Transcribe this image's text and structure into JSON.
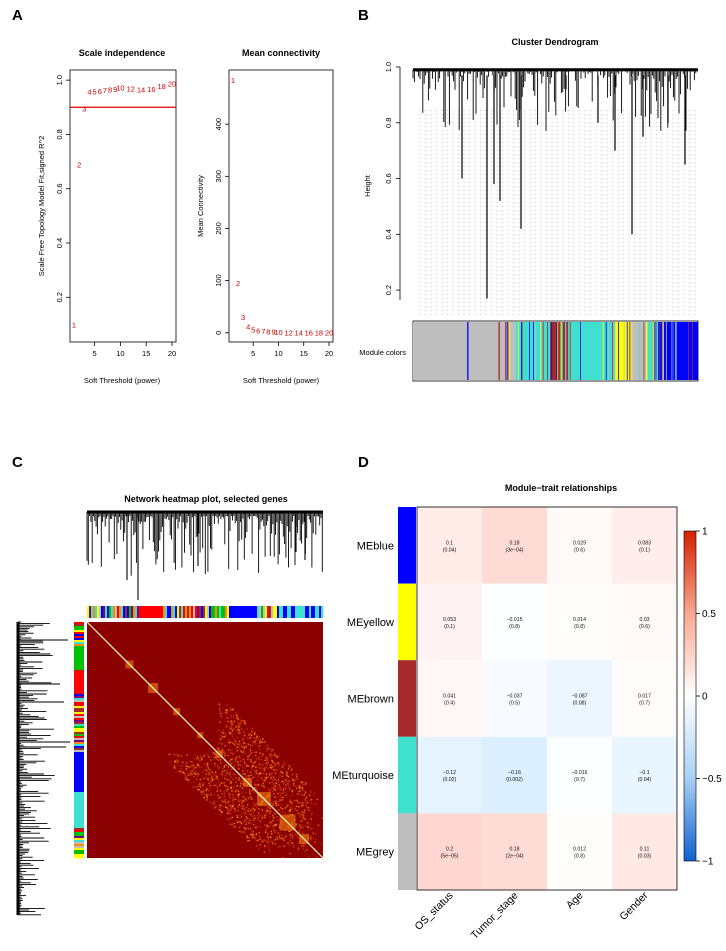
{
  "panels": {
    "A": "A",
    "B": "B",
    "C": "C",
    "D": "D"
  },
  "chart_data": [
    {
      "type": "scatter",
      "panel": "A-left",
      "title": "Scale independence",
      "xlabel": "Soft Threshold (power)",
      "ylabel": "Scale Free Topology Model Fit,signed R^2",
      "xlim": [
        1,
        20
      ],
      "ylim": [
        0.05,
        1.03
      ],
      "xticks": [
        5,
        10,
        15,
        20
      ],
      "yticks": [
        0.2,
        0.4,
        0.6,
        0.8,
        1.0
      ],
      "ytick_labels": [
        "0.2",
        "0.4",
        "0.6",
        "0.8",
        "1.0"
      ],
      "hline": 0.9,
      "points": [
        {
          "x": 1,
          "y": 0.1,
          "label": "1"
        },
        {
          "x": 2,
          "y": 0.69,
          "label": "2"
        },
        {
          "x": 3,
          "y": 0.895,
          "label": "3"
        },
        {
          "x": 4,
          "y": 0.958,
          "label": "4"
        },
        {
          "x": 5,
          "y": 0.958,
          "label": "5"
        },
        {
          "x": 6,
          "y": 0.96,
          "label": "6"
        },
        {
          "x": 7,
          "y": 0.963,
          "label": "7"
        },
        {
          "x": 8,
          "y": 0.965,
          "label": "8"
        },
        {
          "x": 9,
          "y": 0.968,
          "label": "9"
        },
        {
          "x": 10,
          "y": 0.972,
          "label": "10"
        },
        {
          "x": 12,
          "y": 0.97,
          "label": "12"
        },
        {
          "x": 14,
          "y": 0.965,
          "label": "14"
        },
        {
          "x": 16,
          "y": 0.968,
          "label": "16"
        },
        {
          "x": 18,
          "y": 0.978,
          "label": "18"
        },
        {
          "x": 20,
          "y": 0.988,
          "label": "20"
        }
      ]
    },
    {
      "type": "scatter",
      "panel": "A-right",
      "title": "Mean connectivity",
      "xlabel": "Soft Threshold (power)",
      "ylabel": "Mean Connectivity",
      "xlim": [
        1,
        20
      ],
      "ylim": [
        -10,
        500
      ],
      "xticks": [
        5,
        10,
        15,
        20
      ],
      "yticks": [
        0,
        100,
        200,
        300,
        400
      ],
      "points": [
        {
          "x": 1,
          "y": 485,
          "label": "1"
        },
        {
          "x": 2,
          "y": 95,
          "label": "2"
        },
        {
          "x": 3,
          "y": 30,
          "label": "3"
        },
        {
          "x": 4,
          "y": 12,
          "label": "4"
        },
        {
          "x": 5,
          "y": 6,
          "label": "5"
        },
        {
          "x": 6,
          "y": 4,
          "label": "6"
        },
        {
          "x": 7,
          "y": 3,
          "label": "7"
        },
        {
          "x": 8,
          "y": 2,
          "label": "8"
        },
        {
          "x": 9,
          "y": 2,
          "label": "9"
        },
        {
          "x": 10,
          "y": 1.5,
          "label": "10"
        },
        {
          "x": 12,
          "y": 1,
          "label": "12"
        },
        {
          "x": 14,
          "y": 1,
          "label": "14"
        },
        {
          "x": 16,
          "y": 0.8,
          "label": "16"
        },
        {
          "x": 18,
          "y": 0.6,
          "label": "18"
        },
        {
          "x": 20,
          "y": 0.5,
          "label": "20"
        }
      ]
    },
    {
      "type": "dendrogram",
      "panel": "B",
      "title": "Cluster Dendrogram",
      "ylabel": "Height",
      "ylim": [
        0.1,
        1.0
      ],
      "yticks": [
        0.2,
        0.4,
        0.6,
        0.8,
        1.0
      ],
      "ytick_labels": [
        "0.2",
        "0.4",
        "0.6",
        "0.8",
        "1.0"
      ],
      "module_colors_label": "Module colors",
      "color_bar": [
        {
          "color": "#bebebe",
          "from": 0.0,
          "to": 0.19
        },
        {
          "color": "#0000ff",
          "from": 0.19,
          "to": 0.195
        },
        {
          "color": "#bebebe",
          "from": 0.195,
          "to": 0.3
        },
        {
          "color": "#a52a2a",
          "from": 0.3,
          "to": 0.305
        },
        {
          "color": "#bebebe",
          "from": 0.305,
          "to": 0.36
        },
        {
          "color": "#40e0d0",
          "from": 0.36,
          "to": 0.48
        },
        {
          "color": "#a52a2a",
          "from": 0.48,
          "to": 0.545
        },
        {
          "color": "#40e0d0",
          "from": 0.545,
          "to": 0.71
        },
        {
          "color": "#ffff00",
          "from": 0.71,
          "to": 0.76
        },
        {
          "color": "#bebebe",
          "from": 0.76,
          "to": 0.82
        },
        {
          "color": "#40e0d0",
          "from": 0.82,
          "to": 0.86
        },
        {
          "color": "#0000ff",
          "from": 0.86,
          "to": 1.0
        }
      ]
    },
    {
      "type": "heatmap",
      "panel": "C",
      "title": "Network heatmap plot, selected genes"
    },
    {
      "type": "heatmap",
      "panel": "D",
      "title": "Module−trait relationships",
      "rows": [
        "MEblue",
        "MEyellow",
        "MEbrown",
        "MEturquoise",
        "MEgrey"
      ],
      "row_colors": [
        "#0000ff",
        "#ffff00",
        "#a52a2a",
        "#40e0d0",
        "#bebebe"
      ],
      "columns": [
        "OS_status",
        "Tumor_stage",
        "Age",
        "Gender"
      ],
      "values": [
        [
          0.1,
          0.18,
          0.029,
          0.083
        ],
        [
          0.053,
          -0.015,
          0.014,
          0.03
        ],
        [
          0.041,
          -0.037,
          -0.087,
          0.017
        ],
        [
          -0.12,
          -0.16,
          -0.016,
          -0.1
        ],
        [
          0.2,
          0.18,
          0.012,
          0.11
        ]
      ],
      "labels": [
        [
          "0.1",
          "0.18",
          "0.029",
          "0.083"
        ],
        [
          "0.053",
          "−0.015",
          "0.014",
          "0.03"
        ],
        [
          "0.041",
          "−0.037",
          "−0.087",
          "0.017"
        ],
        [
          "−0.12",
          "−0.16",
          "−0.016",
          "−0.1"
        ],
        [
          "0.2",
          "0.18",
          "0.012",
          "0.11"
        ]
      ],
      "pvalues": [
        [
          "(0.04)",
          "(3e−04)",
          "(0.6)",
          "(0.1)"
        ],
        [
          "(0.1)",
          "(0.8)",
          "(0.8)",
          "(0.6)"
        ],
        [
          "(0.4)",
          "(0.5)",
          "(0.08)",
          "(0.7)"
        ],
        [
          "(0.02)",
          "(0.002)",
          "(0.7)",
          "(0.04)"
        ],
        [
          "(5e−05)",
          "(2e−04)",
          "(0.8)",
          "(0.03)"
        ]
      ],
      "colorbar_ticks": [
        1,
        0.5,
        0,
        -0.5,
        -1
      ],
      "colorbar_labels": [
        "1",
        "0.5",
        "0",
        "−0.5",
        "−1"
      ],
      "colorbar_range": [
        -1,
        1
      ]
    }
  ],
  "colors": {
    "red_line": "#e00000",
    "point_label": "#d40000",
    "heat_dark": "#8b0000",
    "pos": "#ff0000",
    "neg": "#0000ff"
  }
}
